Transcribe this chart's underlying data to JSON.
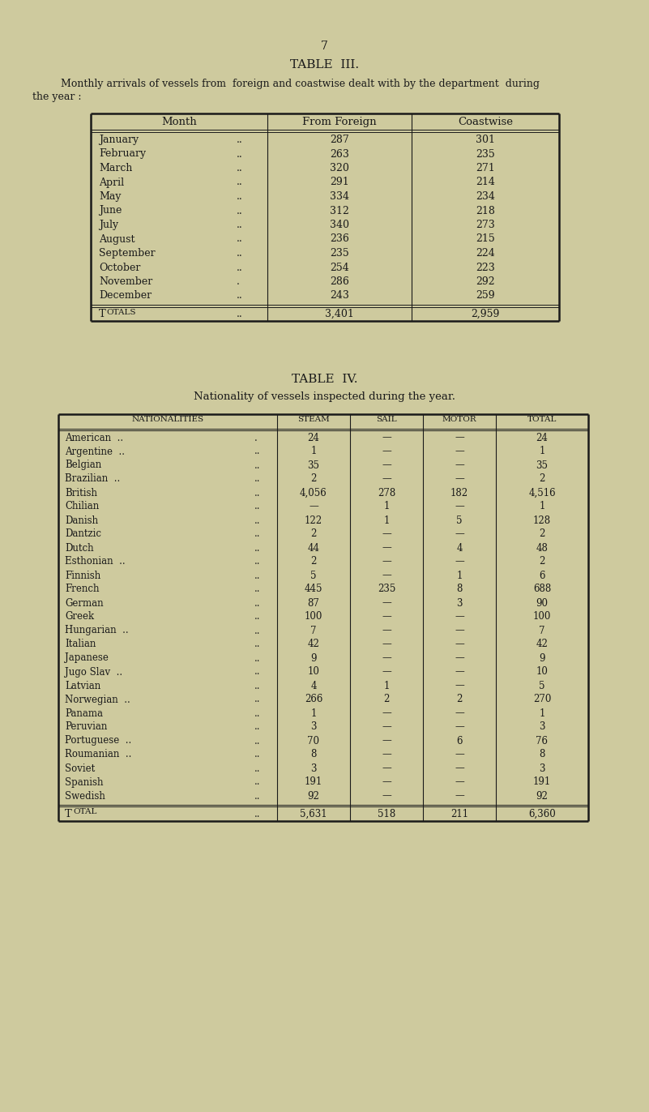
{
  "bg_color": "#ceca9e",
  "page_number": "7",
  "table3_title": "TABLE  III.",
  "table3_headers": [
    "Month",
    "From Foreign",
    "Coastwise"
  ],
  "table3_rows": [
    [
      "January",
      "..",
      "287",
      "301"
    ],
    [
      "February",
      "..",
      "263",
      "235"
    ],
    [
      "March",
      "..",
      "320",
      "271"
    ],
    [
      "April",
      "..",
      "291",
      "214"
    ],
    [
      "May",
      "..",
      "334",
      "234"
    ],
    [
      "June",
      "..",
      "312",
      "218"
    ],
    [
      "July",
      "..",
      "340",
      "273"
    ],
    [
      "August",
      "..",
      "236",
      "215"
    ],
    [
      "September",
      "..",
      "235",
      "224"
    ],
    [
      "October",
      "..",
      "254",
      "223"
    ],
    [
      "November",
      ".",
      "286",
      "292"
    ],
    [
      "December",
      "..",
      "243",
      "259"
    ]
  ],
  "table3_totals": [
    "TOTALS",
    "..",
    "3,401",
    "2,959"
  ],
  "table4_title": "TABLE  IV.",
  "table4_subtitle": "Nationality of vessels inspected during the year.",
  "table4_headers": [
    "NATIONALITIES",
    "STEAM",
    "SAIL",
    "MOTOR",
    "TOTAL"
  ],
  "table4_rows": [
    [
      "American  ..",
      ".",
      "24",
      "—",
      "—",
      "24"
    ],
    [
      "Argentine  ..",
      "..",
      "1",
      "—",
      "—",
      "1"
    ],
    [
      "Belgian",
      "..",
      "35",
      "—",
      "—",
      "35"
    ],
    [
      "Brazilian  ..",
      "..",
      "2",
      "—",
      "—",
      "2"
    ],
    [
      "British",
      "..",
      "4,056",
      "278",
      "182",
      "4,516"
    ],
    [
      "Chilian",
      "..",
      "—",
      "1",
      "—",
      "1"
    ],
    [
      "Danish",
      "..",
      "122",
      "1",
      "5",
      "128"
    ],
    [
      "Dantzic",
      "..",
      "2",
      "—",
      "—",
      "2"
    ],
    [
      "Dutch",
      "..",
      "44",
      "—",
      "4",
      "48"
    ],
    [
      "Esthonian  ..",
      "..",
      "2",
      "—",
      "—",
      "2"
    ],
    [
      "Finnish",
      "..",
      "5",
      "—",
      "1",
      "6"
    ],
    [
      "French",
      "..",
      "445",
      "235",
      "8",
      "688"
    ],
    [
      "German",
      "..",
      "87",
      "—",
      "3",
      "90"
    ],
    [
      "Greek",
      "..",
      "100",
      "—",
      "—",
      "100"
    ],
    [
      "Hungarian  ..",
      "..",
      "7",
      "—",
      "—",
      "7"
    ],
    [
      "Italian",
      "..",
      "42",
      "—",
      "—",
      "42"
    ],
    [
      "Japanese",
      "..",
      "9",
      "—",
      "—",
      "9"
    ],
    [
      "Jugo Slav  ..",
      "..",
      "10",
      "—",
      "—",
      "10"
    ],
    [
      "Latvian",
      "..",
      "4",
      "1",
      "—",
      "5"
    ],
    [
      "Norwegian  ..",
      "..",
      "266",
      "2",
      "2",
      "270"
    ],
    [
      "Panama",
      "..",
      "1",
      "—",
      "—",
      "1"
    ],
    [
      "Peruvian",
      "..",
      "3",
      "—",
      "—",
      "3"
    ],
    [
      "Portuguese  ..",
      "..",
      "70",
      "—",
      "6",
      "76"
    ],
    [
      "Roumanian  ..",
      "..",
      "8",
      "—",
      "—",
      "8"
    ],
    [
      "Soviet",
      "..",
      "3",
      "—",
      "—",
      "3"
    ],
    [
      "Spanish",
      "..",
      "191",
      "—",
      "—",
      "191"
    ],
    [
      "Swedish",
      "..",
      "92",
      "—",
      "—",
      "92"
    ]
  ],
  "table4_totals": [
    "TOTAL",
    "..",
    "5,631",
    "518",
    "211",
    "6,360"
  ],
  "text_color": "#1a1a1a",
  "line_color": "#1a1a1a"
}
